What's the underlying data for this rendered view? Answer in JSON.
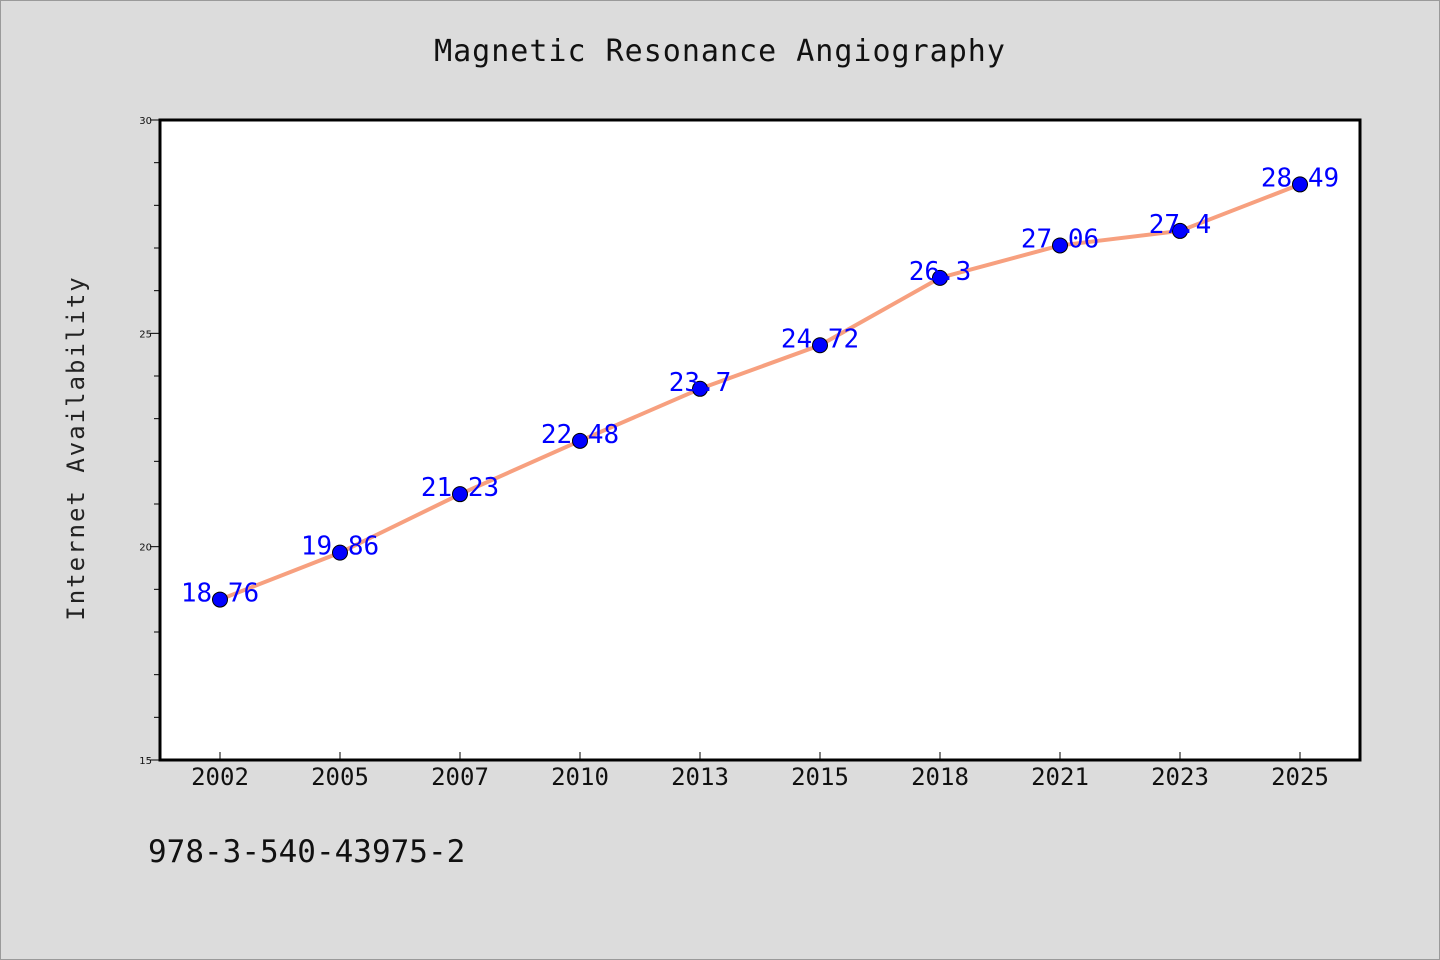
{
  "chart_data": {
    "type": "line",
    "title": "Magnetic Resonance Angiography",
    "xlabel": "",
    "ylabel": "Internet Availability",
    "categories": [
      "2002",
      "2005",
      "2007",
      "2010",
      "2013",
      "2015",
      "2018",
      "2021",
      "2023",
      "2025"
    ],
    "series": [
      {
        "values": [
          18.76,
          19.86,
          21.23,
          22.48,
          23.7,
          24.72,
          26.3,
          27.06,
          27.4,
          28.49
        ],
        "data_labels": [
          "18.76",
          "19.86",
          "21.23",
          "22.48",
          "23.7",
          "24.72",
          "26.3",
          "27.06",
          "27.4",
          "28.49"
        ],
        "line_color": "#f7a07f",
        "marker_color": "#0000ff"
      }
    ],
    "ylim": [
      15,
      30
    ],
    "yticks": [
      "15",
      "20",
      "25",
      "30"
    ],
    "grid": false,
    "legend": "none"
  },
  "footer": {
    "code": "978-3-540-43975-2"
  },
  "colors": {
    "background": "#dcdcdc",
    "plot_background": "#ffffff",
    "line": "#f7a07f",
    "marker": "#0000ff",
    "data_label": "#0000ff"
  }
}
